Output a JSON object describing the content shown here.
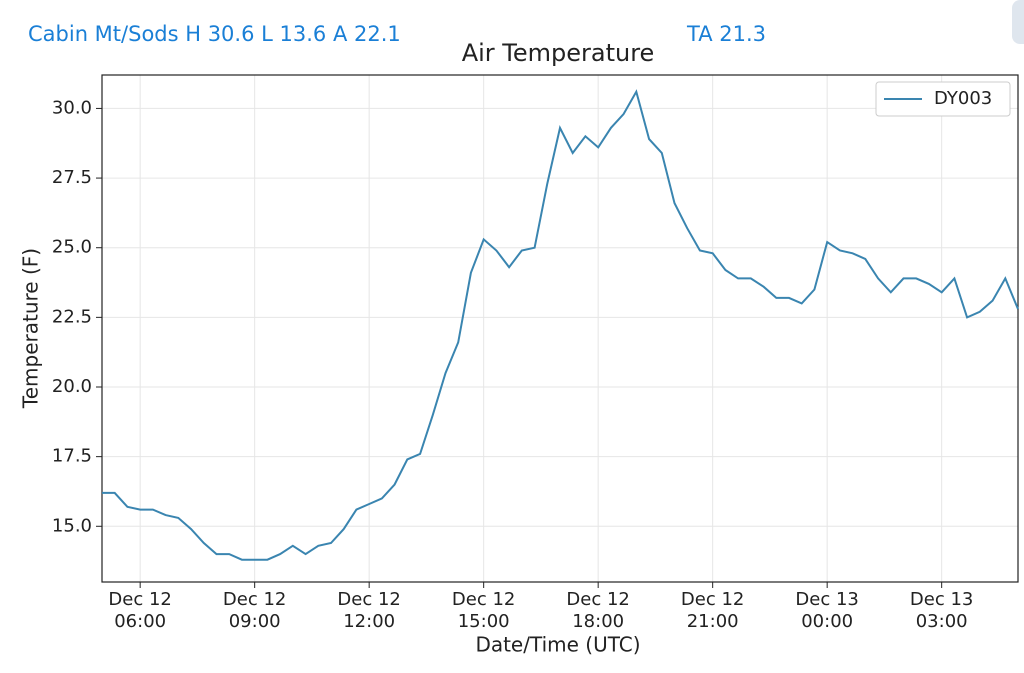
{
  "header": {
    "station": "Cabin Mt/Sods H 30.6 L 13.6 A 22.1",
    "ta": "TA 21.3"
  },
  "chart_data": {
    "type": "line",
    "title": "Air Temperature",
    "xlabel": "Date/Time (UTC)",
    "ylabel": "Temperature (F)",
    "x": [
      "Dec 12 05:00",
      "Dec 12 05:20",
      "Dec 12 05:40",
      "Dec 12 06:00",
      "Dec 12 06:20",
      "Dec 12 06:40",
      "Dec 12 07:00",
      "Dec 12 07:20",
      "Dec 12 07:40",
      "Dec 12 08:00",
      "Dec 12 08:20",
      "Dec 12 08:40",
      "Dec 12 09:00",
      "Dec 12 09:20",
      "Dec 12 09:40",
      "Dec 12 10:00",
      "Dec 12 10:20",
      "Dec 12 10:40",
      "Dec 12 11:00",
      "Dec 12 11:20",
      "Dec 12 11:40",
      "Dec 12 12:00",
      "Dec 12 12:20",
      "Dec 12 12:40",
      "Dec 12 13:00",
      "Dec 12 13:20",
      "Dec 12 13:40",
      "Dec 12 14:00",
      "Dec 12 14:20",
      "Dec 12 14:40",
      "Dec 12 15:00",
      "Dec 12 15:20",
      "Dec 12 15:40",
      "Dec 12 16:00",
      "Dec 12 16:20",
      "Dec 12 16:40",
      "Dec 12 17:00",
      "Dec 12 17:20",
      "Dec 12 17:40",
      "Dec 12 18:00",
      "Dec 12 18:20",
      "Dec 12 18:40",
      "Dec 12 19:00",
      "Dec 12 19:20",
      "Dec 12 19:40",
      "Dec 12 20:00",
      "Dec 12 20:20",
      "Dec 12 20:40",
      "Dec 12 21:00",
      "Dec 12 21:20",
      "Dec 12 21:40",
      "Dec 12 22:00",
      "Dec 12 22:20",
      "Dec 12 22:40",
      "Dec 12 23:00",
      "Dec 12 23:20",
      "Dec 12 23:40",
      "Dec 13 00:00",
      "Dec 13 00:20",
      "Dec 13 00:40",
      "Dec 13 01:00",
      "Dec 13 01:20",
      "Dec 13 01:40",
      "Dec 13 02:00",
      "Dec 13 02:20",
      "Dec 13 02:40",
      "Dec 13 03:00",
      "Dec 13 03:20",
      "Dec 13 03:40",
      "Dec 13 04:00",
      "Dec 13 04:20",
      "Dec 13 04:40",
      "Dec 13 05:00"
    ],
    "series": [
      {
        "name": "DY003",
        "color": "#3a85b0",
        "values": [
          16.2,
          16.2,
          15.7,
          15.6,
          15.6,
          15.4,
          15.3,
          14.9,
          14.4,
          14.0,
          14.0,
          13.8,
          13.8,
          13.8,
          14.0,
          14.3,
          14.0,
          14.3,
          14.4,
          14.9,
          15.6,
          15.8,
          16.0,
          16.5,
          17.4,
          17.6,
          19.0,
          20.5,
          21.6,
          24.1,
          25.3,
          24.9,
          24.3,
          24.9,
          25.0,
          27.3,
          29.3,
          28.4,
          29.0,
          28.6,
          29.3,
          29.8,
          30.6,
          28.9,
          28.4,
          26.6,
          25.7,
          24.9,
          24.8,
          24.2,
          23.9,
          23.9,
          23.6,
          23.2,
          23.2,
          23.0,
          23.5,
          25.2,
          24.9,
          24.8,
          24.6,
          23.9,
          23.4,
          23.9,
          23.9,
          23.7,
          23.4,
          23.9,
          22.5,
          22.7,
          23.1,
          23.9,
          22.8
        ]
      }
    ],
    "xlim": [
      "Dec 12 05:00",
      "Dec 13 05:00"
    ],
    "xticks": [
      "Dec 12\n06:00",
      "Dec 12\n09:00",
      "Dec 12\n12:00",
      "Dec 12\n15:00",
      "Dec 12\n18:00",
      "Dec 12\n21:00",
      "Dec 13\n00:00",
      "Dec 13\n03:00"
    ],
    "ylim": [
      13.0,
      31.2
    ],
    "yticks": [
      {
        "value": 15,
        "label": "15.0"
      },
      17.5,
      {
        "value": 20,
        "label": "20.0"
      },
      22.5,
      {
        "value": 25,
        "label": "25.0"
      },
      27.5,
      {
        "value": 30,
        "label": "30.0"
      }
    ],
    "grid": true,
    "legend": "upper right"
  }
}
